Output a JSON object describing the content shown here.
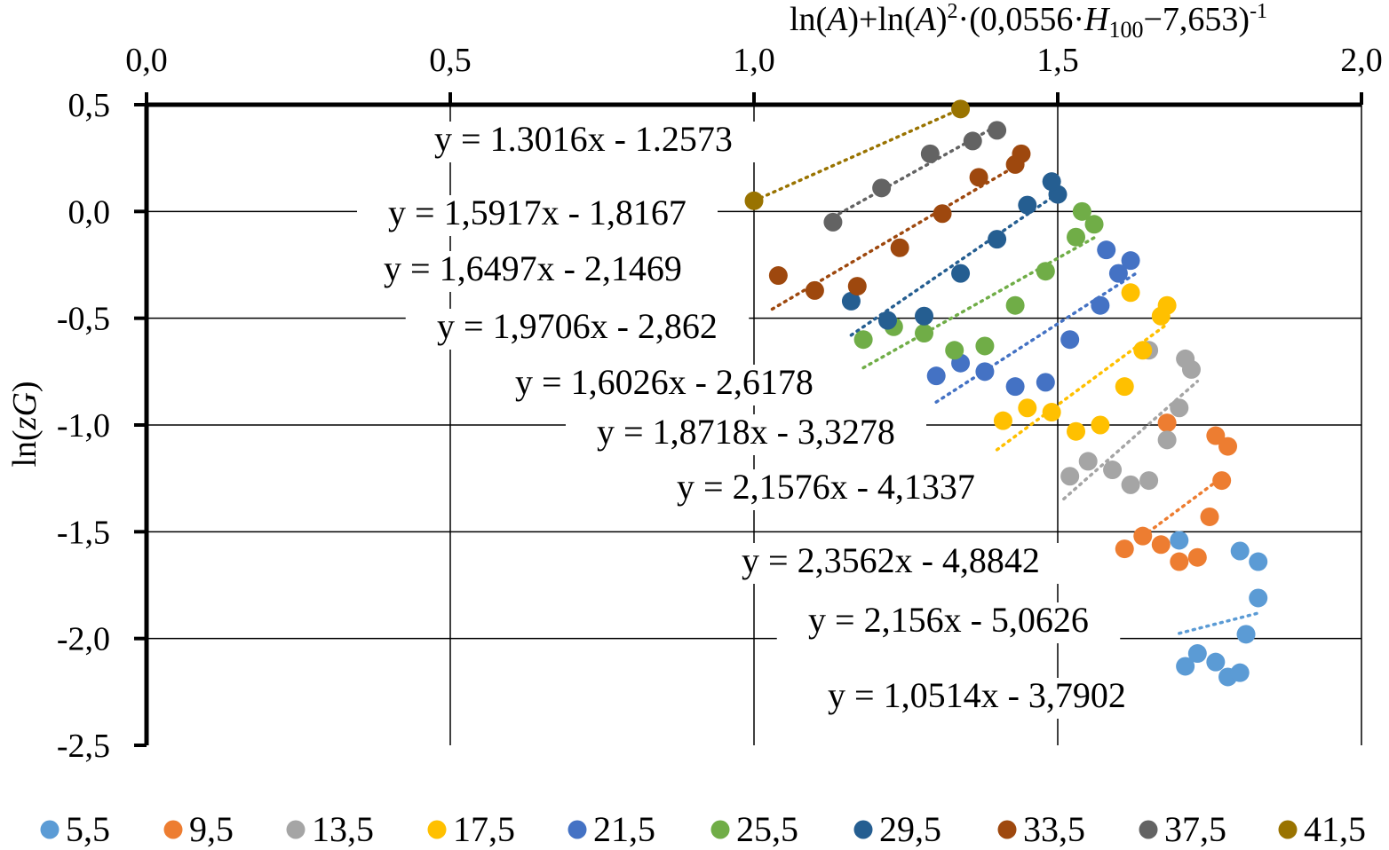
{
  "chart_data": {
    "type": "scatter",
    "title": "",
    "xlabel": "ln(A)+ln(A)²·(0,0556·H₁₀₀−7,653)⁻¹",
    "xlabel_parts": {
      "p1": "ln(",
      "p2": "A",
      "p3": ")+ln(",
      "p4": "A",
      "p5": ")",
      "p6": "2",
      "p7": "·(0,0556·",
      "p8": "H",
      "p9": "100",
      "p10": "−7,653)",
      "p11": "-1"
    },
    "ylabel": "ln(zG)",
    "ylabel_parts": {
      "p1": "ln(",
      "p2": "zG",
      "p3": ")"
    },
    "xlim": [
      0,
      2
    ],
    "ylim": [
      -2.5,
      0.5
    ],
    "x_axis_position": "top",
    "grid": true,
    "x_ticks": [
      0,
      0.5,
      1,
      1.5,
      2
    ],
    "x_tick_labels": [
      "0,0",
      "0,5",
      "1,0",
      "1,5",
      "2,0"
    ],
    "y_ticks": [
      0.5,
      0,
      -0.5,
      -1,
      -1.5,
      -2,
      -2.5
    ],
    "y_tick_labels": [
      "0,5",
      "0,0",
      "-0,5",
      "-1,0",
      "-1,5",
      "-2,0",
      "-2,5"
    ],
    "legend_position": "bottom",
    "series": [
      {
        "name": "5,5",
        "color": "#5B9BD5",
        "points": [
          [
            1.7,
            -1.54
          ],
          [
            1.8,
            -1.59
          ],
          [
            1.83,
            -1.64
          ],
          [
            1.83,
            -1.81
          ],
          [
            1.81,
            -1.98
          ],
          [
            1.71,
            -2.13
          ],
          [
            1.73,
            -2.07
          ],
          [
            1.76,
            -2.11
          ],
          [
            1.78,
            -2.18
          ],
          [
            1.8,
            -2.16
          ]
        ],
        "trend": [
          1.7,
          1.83
        ]
      },
      {
        "name": "9,5",
        "color": "#ED7D31",
        "points": [
          [
            1.64,
            -1.52
          ],
          [
            1.67,
            -1.56
          ],
          [
            1.7,
            -1.64
          ],
          [
            1.73,
            -1.62
          ],
          [
            1.75,
            -1.43
          ],
          [
            1.77,
            -1.26
          ],
          [
            1.78,
            -1.1
          ],
          [
            1.76,
            -1.05
          ],
          [
            1.68,
            -0.99
          ],
          [
            1.61,
            -1.58
          ]
        ],
        "trend": [
          1.64,
          1.77
        ]
      },
      {
        "name": "13,5",
        "color": "#A5A5A5",
        "points": [
          [
            1.52,
            -1.24
          ],
          [
            1.55,
            -1.17
          ],
          [
            1.59,
            -1.21
          ],
          [
            1.62,
            -1.28
          ],
          [
            1.65,
            -1.26
          ],
          [
            1.68,
            -1.07
          ],
          [
            1.7,
            -0.92
          ],
          [
            1.72,
            -0.74
          ],
          [
            1.71,
            -0.69
          ],
          [
            1.65,
            -0.65
          ]
        ],
        "trend": [
          1.51,
          1.73
        ]
      },
      {
        "name": "17,5",
        "color": "#FFC000",
        "points": [
          [
            1.41,
            -0.98
          ],
          [
            1.45,
            -0.92
          ],
          [
            1.49,
            -0.94
          ],
          [
            1.53,
            -1.03
          ],
          [
            1.57,
            -1.0
          ],
          [
            1.61,
            -0.82
          ],
          [
            1.64,
            -0.65
          ],
          [
            1.67,
            -0.49
          ],
          [
            1.68,
            -0.44
          ],
          [
            1.62,
            -0.38
          ]
        ],
        "trend": [
          1.4,
          1.68
        ]
      },
      {
        "name": "21,5",
        "color": "#4472C4",
        "points": [
          [
            1.3,
            -0.77
          ],
          [
            1.34,
            -0.71
          ],
          [
            1.38,
            -0.75
          ],
          [
            1.43,
            -0.82
          ],
          [
            1.48,
            -0.8
          ],
          [
            1.52,
            -0.6
          ],
          [
            1.57,
            -0.44
          ],
          [
            1.6,
            -0.29
          ],
          [
            1.62,
            -0.23
          ],
          [
            1.58,
            -0.18
          ]
        ],
        "trend": [
          1.3,
          1.63
        ]
      },
      {
        "name": "25,5",
        "color": "#70AD47",
        "points": [
          [
            1.18,
            -0.6
          ],
          [
            1.23,
            -0.54
          ],
          [
            1.28,
            -0.57
          ],
          [
            1.33,
            -0.65
          ],
          [
            1.38,
            -0.63
          ],
          [
            1.43,
            -0.44
          ],
          [
            1.48,
            -0.28
          ],
          [
            1.53,
            -0.12
          ],
          [
            1.56,
            -0.06
          ],
          [
            1.54,
            0.0
          ]
        ],
        "trend": [
          1.18,
          1.56
        ]
      },
      {
        "name": "29,5",
        "color": "#255E91",
        "points": [
          [
            1.16,
            -0.42
          ],
          [
            1.22,
            -0.51
          ],
          [
            1.28,
            -0.49
          ],
          [
            1.34,
            -0.29
          ],
          [
            1.4,
            -0.13
          ],
          [
            1.45,
            0.03
          ],
          [
            1.5,
            0.08
          ],
          [
            1.49,
            0.14
          ]
        ],
        "trend": [
          1.16,
          1.5
        ]
      },
      {
        "name": "33,5",
        "color": "#9E480E",
        "points": [
          [
            1.04,
            -0.3
          ],
          [
            1.1,
            -0.37
          ],
          [
            1.17,
            -0.35
          ],
          [
            1.24,
            -0.17
          ],
          [
            1.31,
            -0.01
          ],
          [
            1.37,
            0.16
          ],
          [
            1.43,
            0.22
          ],
          [
            1.44,
            0.27
          ]
        ],
        "trend": [
          1.03,
          1.44
        ]
      },
      {
        "name": "37,5",
        "color": "#636363",
        "points": [
          [
            1.13,
            -0.05
          ],
          [
            1.21,
            0.11
          ],
          [
            1.29,
            0.27
          ],
          [
            1.36,
            0.33
          ],
          [
            1.4,
            0.38
          ]
        ],
        "trend": [
          1.13,
          1.4
        ]
      },
      {
        "name": "41,5",
        "color": "#997300",
        "points": [
          [
            1.0,
            0.05
          ],
          [
            1.34,
            0.48
          ]
        ],
        "trend": [
          1.0,
          1.34
        ]
      }
    ],
    "annotations": [
      "y = 1.3016x - 1.2573",
      "y = 1,5917x - 1,8167",
      "y = 1,6497x - 2,1469",
      "y = 1,9706x - 2,862",
      "y = 1,6026x - 2,6178",
      "y = 1,8718x - 3,3278",
      "y = 2,1576x - 4,1337",
      "y = 2,3562x - 4,8842",
      "y = 2,156x - 5,0626",
      "y = 1,0514x - 3,7902"
    ]
  }
}
